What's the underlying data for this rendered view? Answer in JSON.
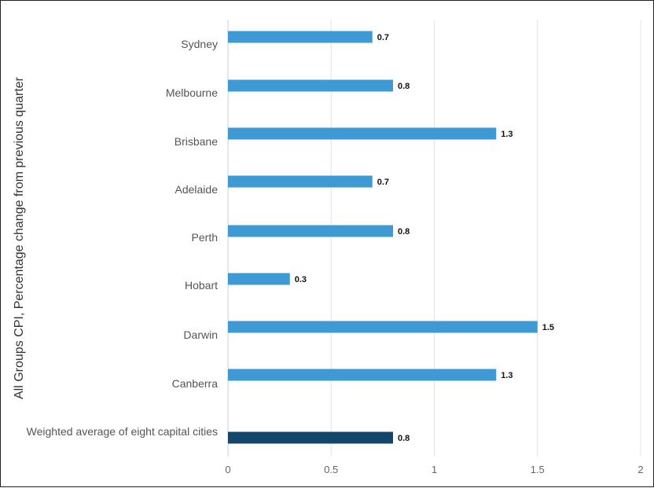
{
  "chart_data": {
    "type": "bar",
    "orientation": "horizontal",
    "title": "",
    "xlabel": "",
    "ylabel": "All Groups CPI, Percentage change from previous quarter",
    "categories": [
      "Sydney",
      "Melbourne",
      "Brisbane",
      "Adelaide",
      "Perth",
      "Hobart",
      "Darwin",
      "Canberra",
      "Weighted average of eight capital cities"
    ],
    "values": [
      0.7,
      0.8,
      1.3,
      0.7,
      0.8,
      0.3,
      1.5,
      1.3,
      0.8
    ],
    "data_labels": [
      "0.7",
      "0.8",
      "1.3",
      "0.7",
      "0.8",
      "0.3",
      "1.5",
      "1.3",
      "0.8"
    ],
    "x_ticks": [
      "0",
      "0.5",
      "1",
      "1.5",
      "2"
    ],
    "xlim": [
      0,
      2
    ],
    "grid": true,
    "colors": {
      "bar": "#3d9ad4",
      "highlight_bar": "#13466a",
      "grid": "#e3e3e3",
      "axis": "#c9cde8"
    }
  }
}
